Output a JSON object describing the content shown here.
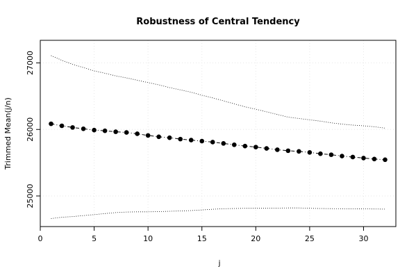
{
  "chart_data": {
    "type": "line",
    "title": "Robustness of Central Tendency",
    "xlabel": "j",
    "ylabel": "Trimmed Mean(j/n)",
    "xlim": [
      0,
      33
    ],
    "ylim": [
      24540,
      27340
    ],
    "x_ticks": [
      0,
      5,
      10,
      15,
      20,
      25,
      30
    ],
    "y_ticks": [
      25000,
      26000,
      27000
    ],
    "grid": true,
    "x": [
      1,
      2,
      3,
      4,
      5,
      6,
      7,
      8,
      9,
      10,
      11,
      12,
      13,
      14,
      15,
      16,
      17,
      18,
      19,
      20,
      21,
      22,
      23,
      24,
      25,
      26,
      27,
      28,
      29,
      30,
      31,
      32
    ],
    "series": [
      {
        "role": "mean",
        "values": [
          26085,
          26055,
          26030,
          26010,
          25990,
          25980,
          25965,
          25955,
          25935,
          25910,
          25890,
          25875,
          25855,
          25840,
          25825,
          25810,
          25790,
          25770,
          25750,
          25735,
          25715,
          25695,
          25680,
          25670,
          25655,
          25635,
          25620,
          25600,
          25585,
          25570,
          25555,
          25545
        ]
      },
      {
        "role": "upper",
        "values": [
          27110,
          27040,
          26980,
          26930,
          26880,
          26845,
          26805,
          26775,
          26740,
          26705,
          26670,
          26630,
          26595,
          26560,
          26515,
          26475,
          26430,
          26385,
          26340,
          26305,
          26265,
          26225,
          26185,
          26165,
          26145,
          26125,
          26100,
          26080,
          26065,
          26055,
          26040,
          26020
        ]
      },
      {
        "role": "lower",
        "values": [
          24660,
          24680,
          24690,
          24705,
          24720,
          24735,
          24750,
          24758,
          24762,
          24762,
          24765,
          24770,
          24775,
          24780,
          24790,
          24800,
          24808,
          24812,
          24815,
          24815,
          24815,
          24818,
          24820,
          24820,
          24815,
          24812,
          24810,
          24808,
          24806,
          24805,
          24804,
          24802
        ]
      }
    ]
  }
}
